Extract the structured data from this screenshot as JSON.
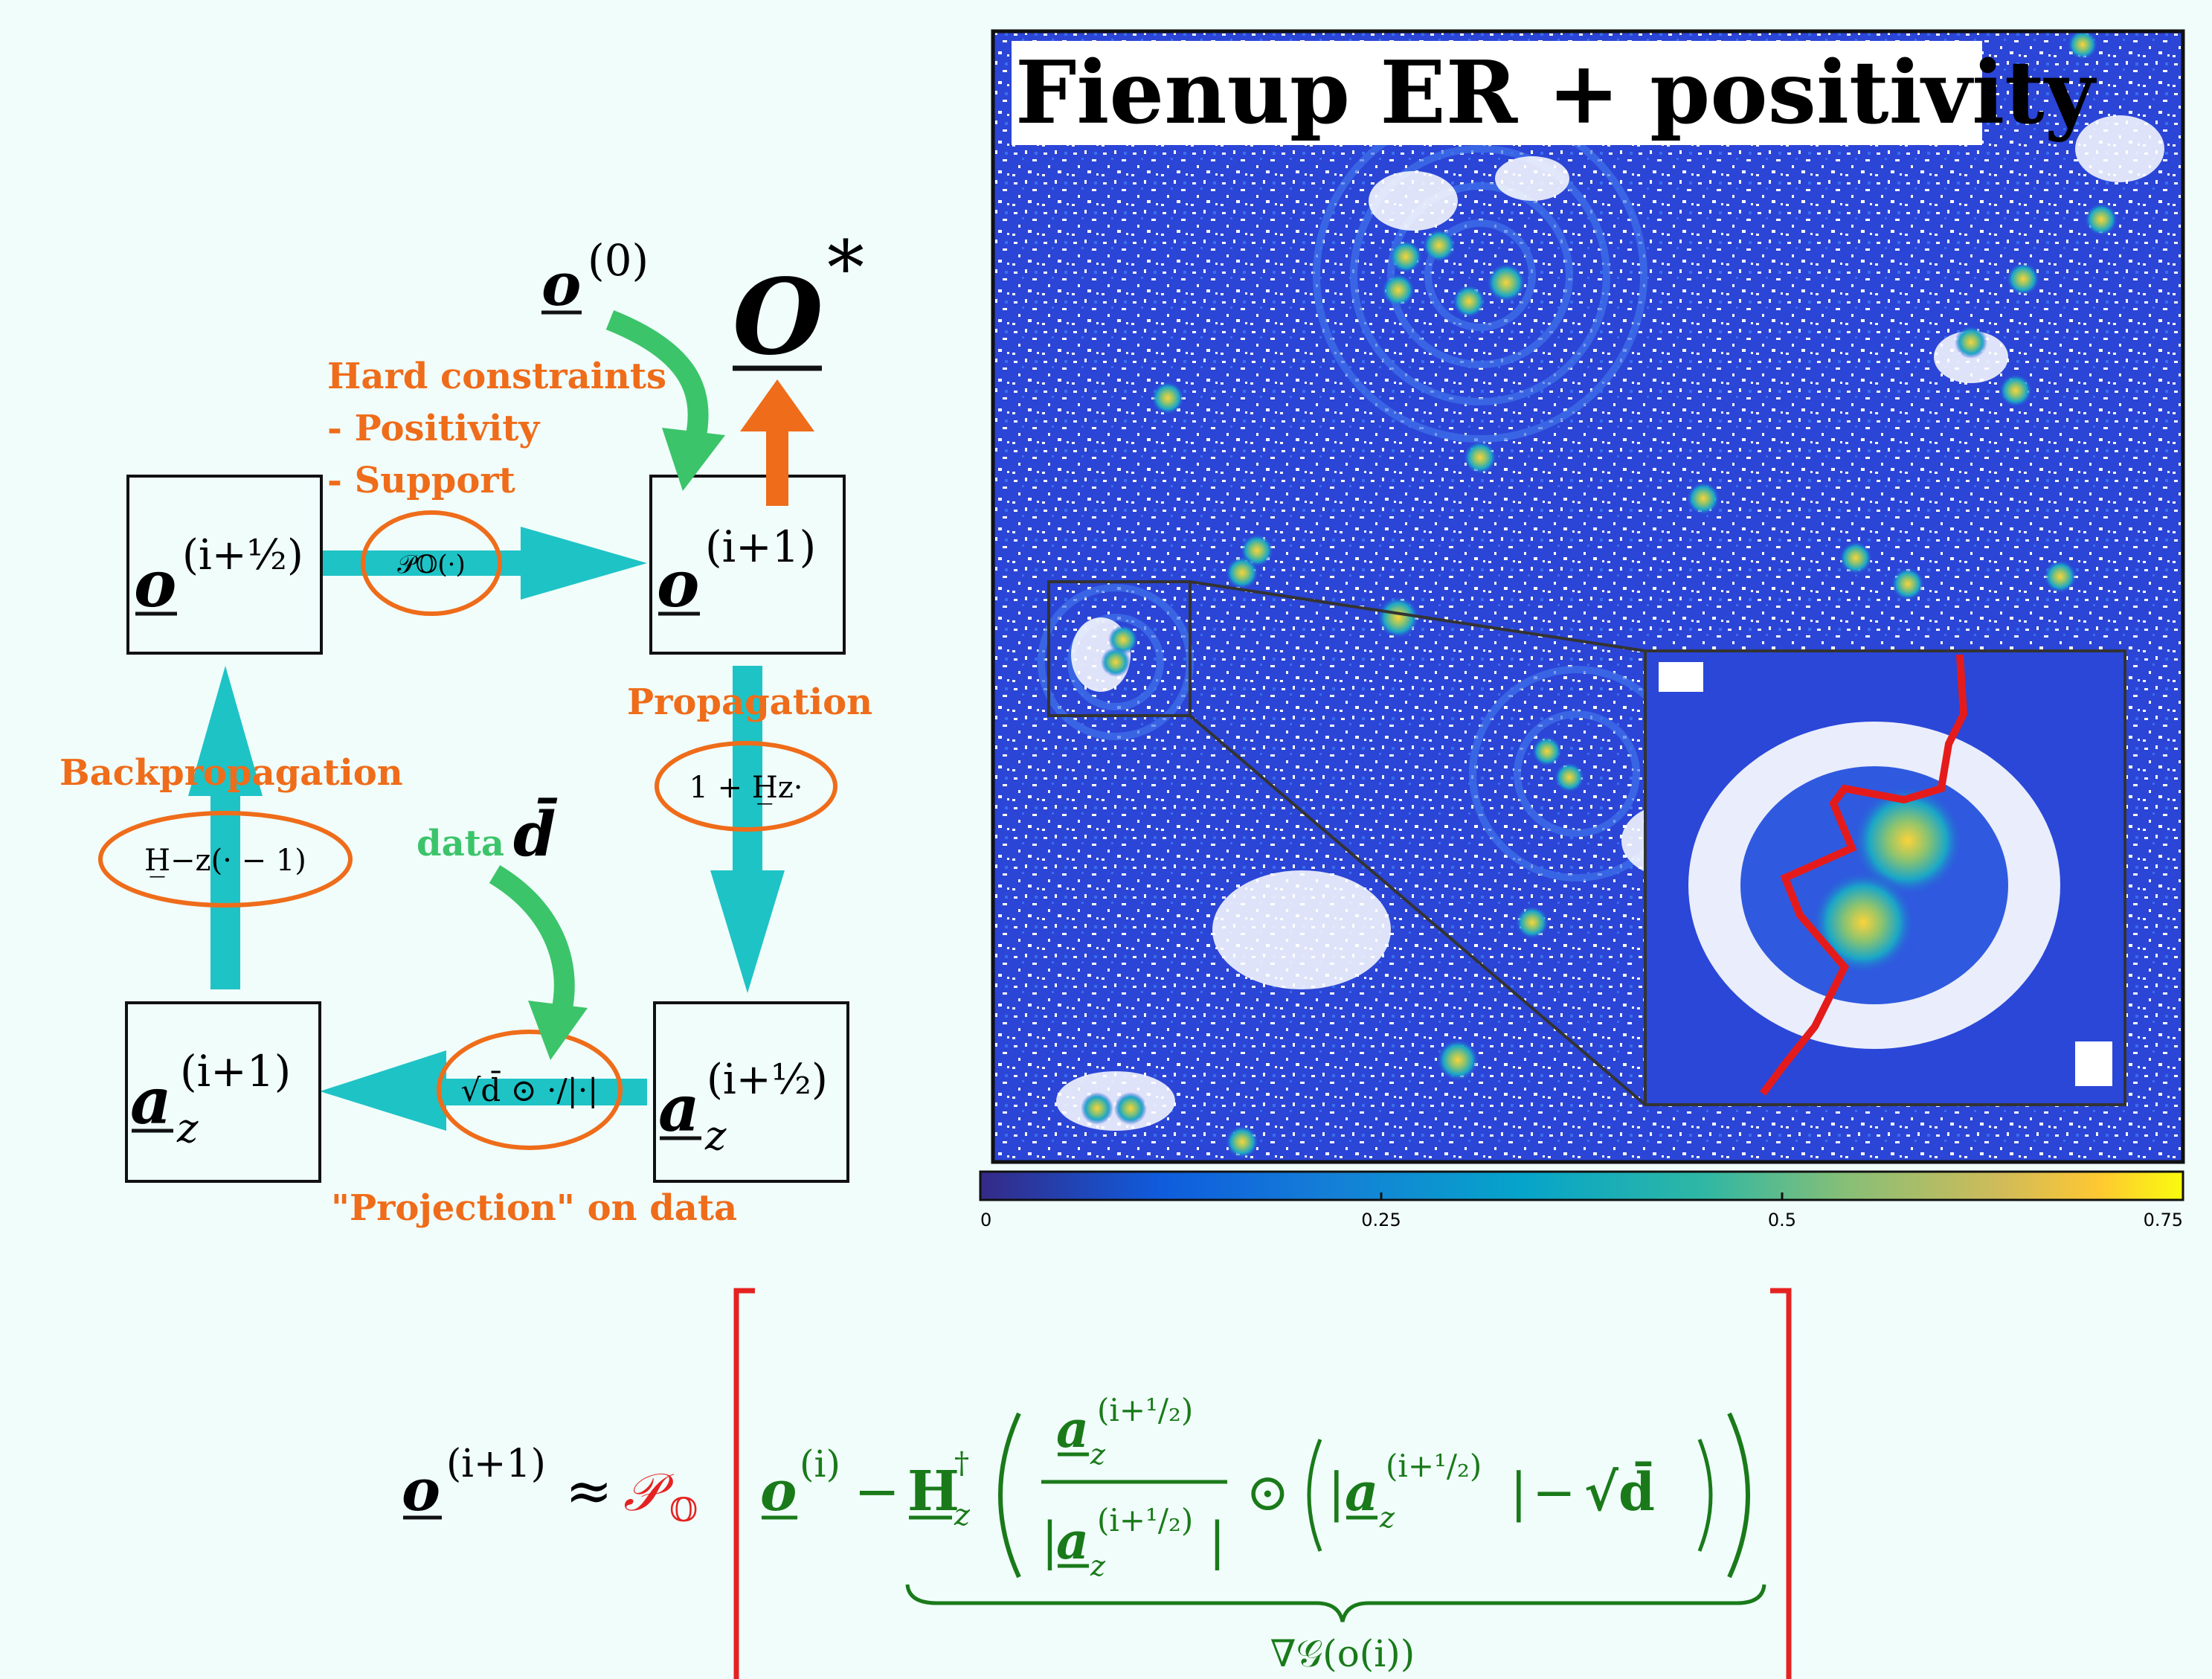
{
  "diagram": {
    "nodes": {
      "o_half": {
        "symbol": "o",
        "superscript": "(i+½)"
      },
      "o_next": {
        "symbol": "o",
        "superscript": "(i+1)"
      },
      "a_next": {
        "symbol": "a",
        "sub": "z",
        "superscript": "(i+1)"
      },
      "a_half": {
        "symbol": "a",
        "sub": "z",
        "superscript": "(i+½)"
      }
    },
    "labels": {
      "hard_constraints": "Hard constraints",
      "positivity": "- Positivity",
      "support": "- Support",
      "propagation": "Propagation",
      "backpropagation": "Backpropagation",
      "projection": "\"Projection\" on data",
      "data": "data"
    },
    "operators": {
      "projection_op": "𝒫𝕆(·)",
      "propagation_op": "1 + H̲z·",
      "backprop_op": "H̲−z(· − 1)",
      "data_op": "√d̄ ⊙ ·/|·|"
    },
    "init": {
      "symbol": "o",
      "superscript": "(0)"
    },
    "output": {
      "symbol": "O",
      "superscript": "*"
    },
    "data_symbol": "d̄"
  },
  "image_panel": {
    "title": "Fienup ER + positivity",
    "colorbar": {
      "ticks": [
        "0",
        "0.25",
        "0.5",
        "0.75"
      ],
      "min": 0,
      "max": 0.75,
      "colormap": "parula"
    }
  },
  "equation": {
    "lhs": "o",
    "lhs_sup": "(i+1)",
    "approx": "≈",
    "proj": "𝒫",
    "proj_sub": "𝕆",
    "o_i_sup": "(i)",
    "minus": "−",
    "H": "H",
    "H_sup": "†",
    "H_sub": "z",
    "a": "a",
    "a_sub": "z",
    "a_sup": "(i+¹/₂)",
    "odot": "⊙",
    "sqrt_d": "√d̄",
    "underbrace_label": "∇𝒢(o(i))"
  },
  "colors": {
    "teal": "#1ec3c6",
    "orange": "#ef6c1a",
    "green": "#3cc46a",
    "eq_green": "#1a7a1a",
    "red": "#e52222",
    "bg": "#f0fdfa"
  }
}
